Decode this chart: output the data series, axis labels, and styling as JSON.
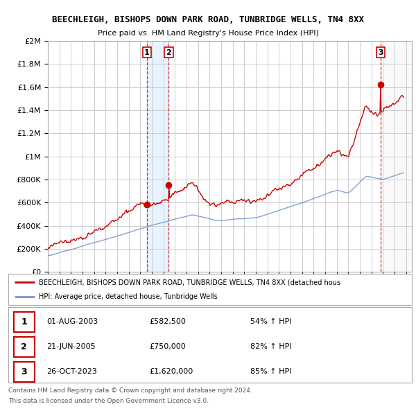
{
  "title": "BEECHLEIGH, BISHOPS DOWN PARK ROAD, TUNBRIDGE WELLS, TN4 8XX",
  "subtitle": "Price paid vs. HM Land Registry's House Price Index (HPI)",
  "ylim": [
    0,
    2000000
  ],
  "yticks": [
    0,
    200000,
    400000,
    600000,
    800000,
    1000000,
    1200000,
    1400000,
    1600000,
    1800000,
    2000000
  ],
  "ytick_labels": [
    "£0",
    "£200K",
    "£400K",
    "£600K",
    "£800K",
    "£1M",
    "£1.2M",
    "£1.4M",
    "£1.6M",
    "£1.8M",
    "£2M"
  ],
  "hpi_color": "#7799cc",
  "price_color": "#cc0000",
  "sale_marker_color": "#cc0000",
  "background_color": "#ffffff",
  "grid_color": "#cccccc",
  "legend_label_price": "BEECHLEIGH, BISHOPS DOWN PARK ROAD, TUNBRIDGE WELLS, TN4 8XX (detached hous",
  "legend_label_hpi": "HPI: Average price, detached house, Tunbridge Wells",
  "sale_1_date": "01-AUG-2003",
  "sale_1_price": "£582,500",
  "sale_1_hpi": "54% ↑ HPI",
  "sale_1_year": 2003.58,
  "sale_1_value": 582500,
  "sale_2_date": "21-JUN-2005",
  "sale_2_price": "£750,000",
  "sale_2_hpi": "82% ↑ HPI",
  "sale_2_year": 2005.47,
  "sale_2_value": 750000,
  "sale_3_date": "26-OCT-2023",
  "sale_3_price": "£1,620,000",
  "sale_3_hpi": "85% ↑ HPI",
  "sale_3_year": 2023.82,
  "sale_3_value": 1620000,
  "footer_line1": "Contains HM Land Registry data © Crown copyright and database right 2024.",
  "footer_line2": "This data is licensed under the Open Government Licence v3.0.",
  "shade_1_start": 2003.58,
  "shade_1_end": 2005.47,
  "shade_3_start": 2023.82,
  "shade_3_end": 2026.5,
  "xmin": 1995.0,
  "xmax": 2026.5
}
